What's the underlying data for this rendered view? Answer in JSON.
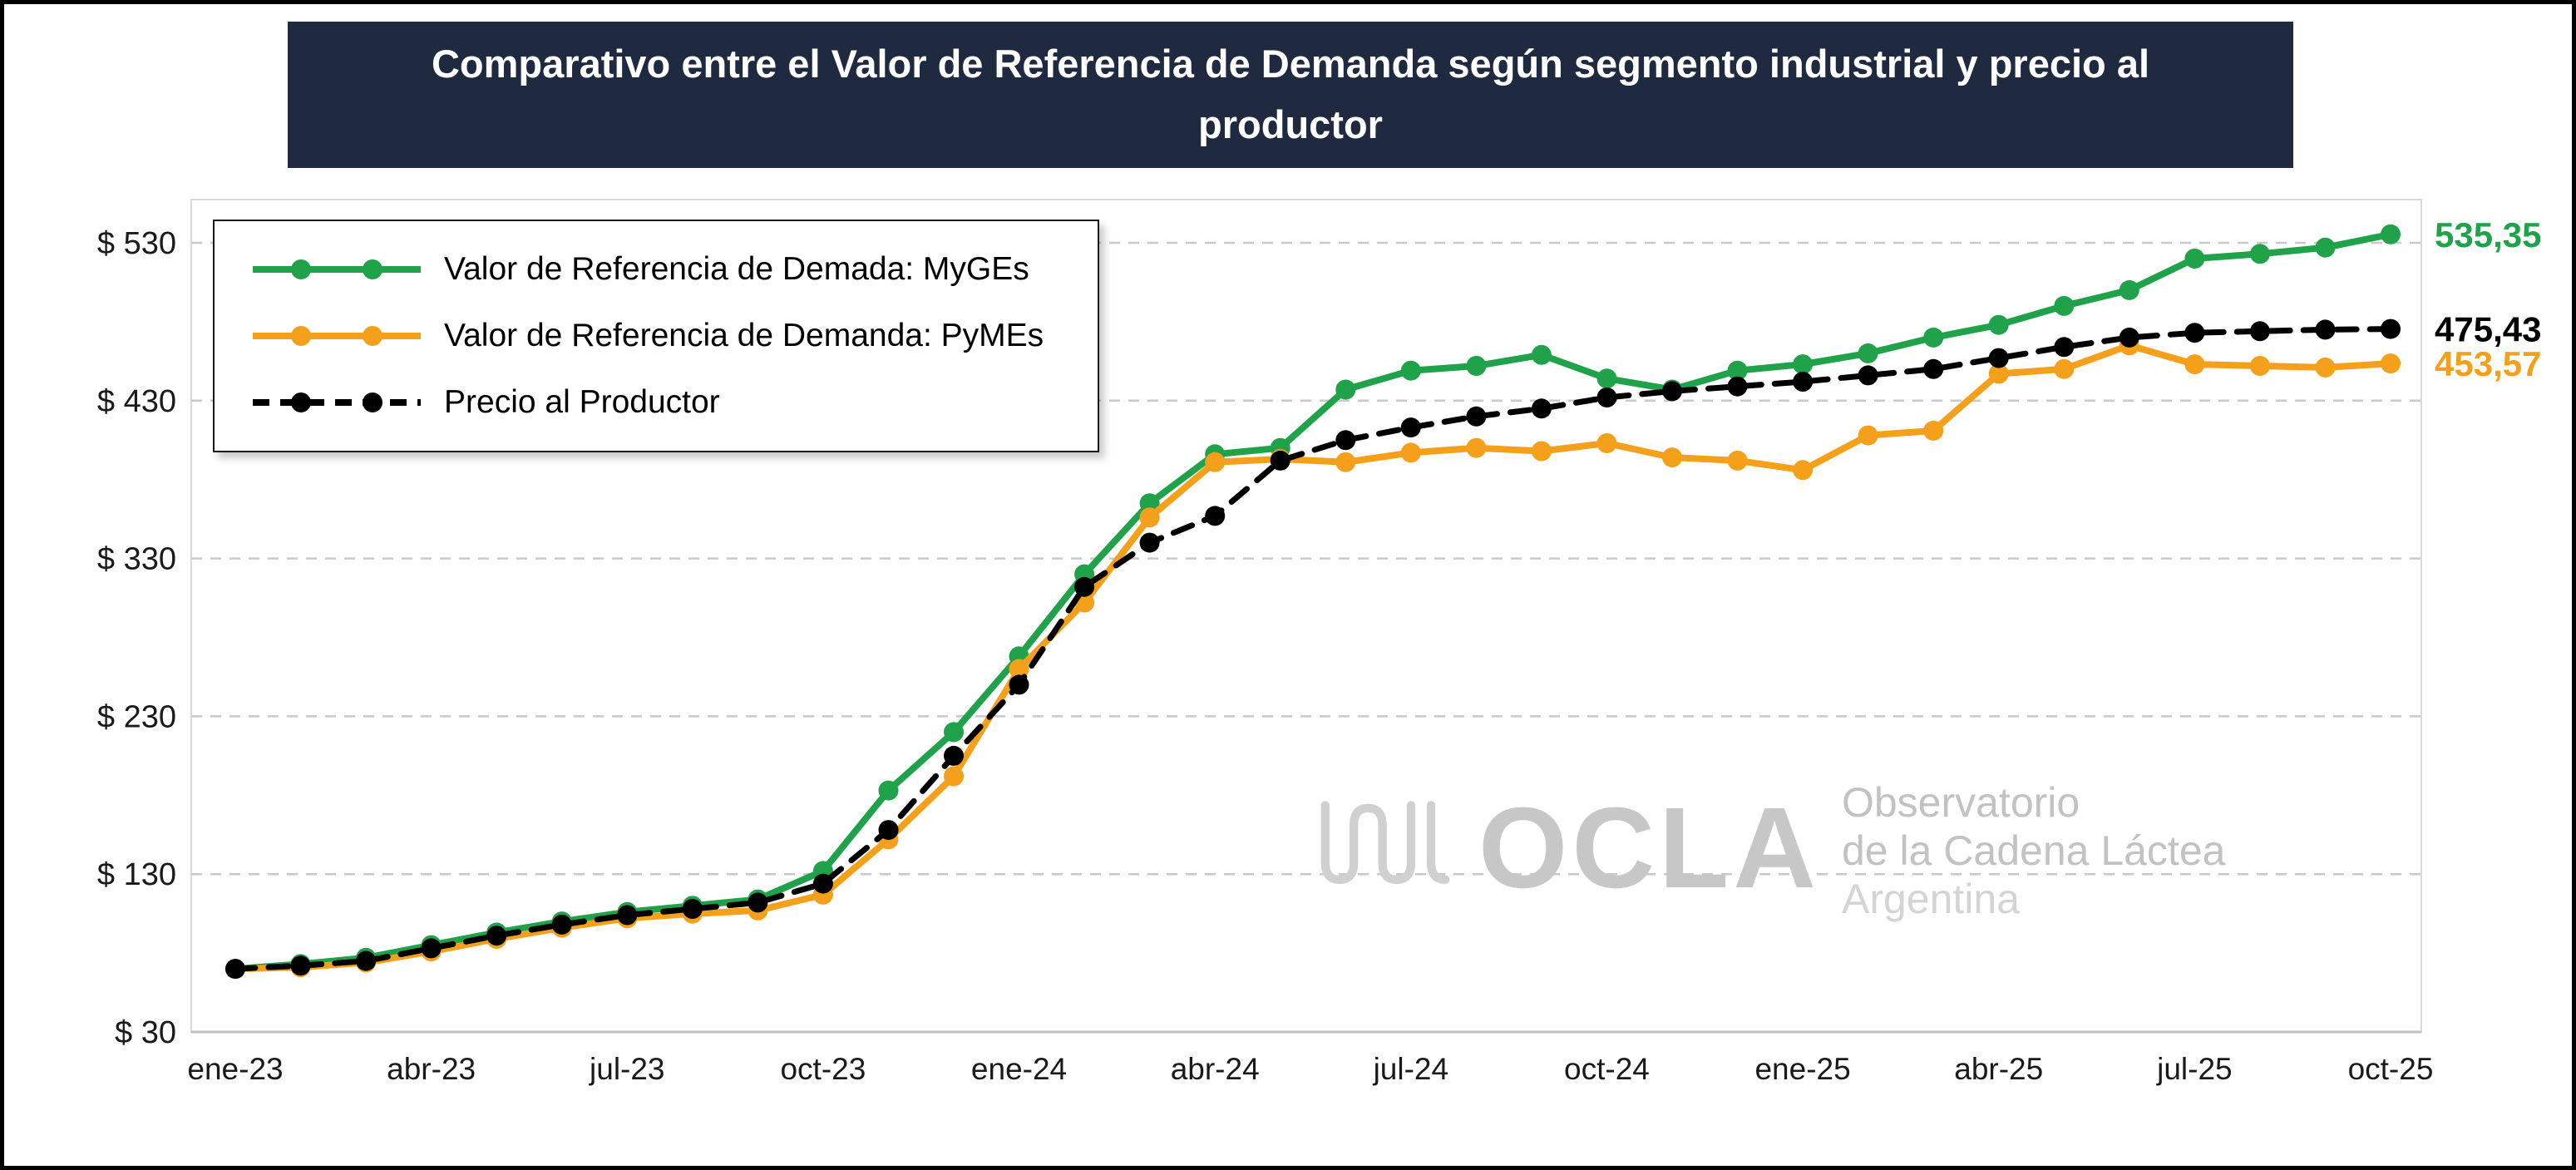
{
  "title": "Comparativo entre el Valor de Referencia de Demanda según segmento industrial y precio al productor",
  "colors": {
    "banner_bg": "#1F2A40",
    "myges_green": "#1FA24A",
    "pymes_orange": "#F5A01B",
    "productor_black": "#000000",
    "grid_gray": "#c9c9c9"
  },
  "watermark": {
    "brand": "OCLA",
    "line1": "Observatorio",
    "line2": "de la Cadena Láctea",
    "line3": "Argentina"
  },
  "chart_data": {
    "type": "line",
    "title": "Comparativo entre el Valor de Referencia de Demanda según segmento industrial y precio al productor",
    "xlabel": "",
    "ylabel": "",
    "ylim": [
      30,
      557
    ],
    "y_ticks": [
      30,
      130,
      230,
      330,
      430,
      530
    ],
    "y_tick_labels": [
      "$ 30",
      "$ 130",
      "$ 230",
      "$ 330",
      "$ 430",
      "$ 530"
    ],
    "grid": "horizontal-dashed",
    "legend_position": "top-left",
    "categories": [
      "ene-23",
      "feb-23",
      "mar-23",
      "abr-23",
      "may-23",
      "jun-23",
      "jul-23",
      "ago-23",
      "sep-23",
      "oct-23",
      "nov-23",
      "dic-23",
      "ene-24",
      "feb-24",
      "mar-24",
      "abr-24",
      "may-24",
      "jun-24",
      "jul-24",
      "ago-24",
      "sep-24",
      "oct-24",
      "nov-24",
      "dic-24",
      "ene-25",
      "feb-25",
      "mar-25",
      "abr-25",
      "may-25",
      "jun-25",
      "jul-25",
      "ago-25",
      "sep-25",
      "oct-25"
    ],
    "x_tick_indices": [
      0,
      3,
      6,
      9,
      12,
      15,
      18,
      21,
      24,
      27,
      30,
      33
    ],
    "series": [
      {
        "name": "Valor de Referencia de Demada: MyGEs",
        "color": "#1FA24A",
        "style": "solid",
        "end_label": "535,35",
        "values": [
          70,
          73,
          77,
          85,
          93,
          100,
          106,
          110,
          114,
          132,
          183,
          220,
          268,
          320,
          365,
          396,
          400,
          437,
          449,
          452,
          459,
          444,
          437,
          449,
          453,
          460,
          470,
          478,
          490,
          500,
          520,
          523,
          527,
          535.35
        ]
      },
      {
        "name": "Valor de Referencia de Demanda: PyMEs",
        "color": "#F5A01B",
        "style": "solid",
        "end_label": "453,57",
        "values": [
          70,
          71,
          74,
          81,
          89,
          96,
          102,
          105,
          107,
          117,
          152,
          192,
          260,
          302,
          356,
          391,
          393,
          391,
          397,
          400,
          398,
          403,
          394,
          392,
          386,
          408,
          411,
          447,
          450,
          465,
          453,
          452,
          451,
          453.57
        ]
      },
      {
        "name": "Precio al Productor",
        "color": "#000000",
        "style": "dashed",
        "end_label": "475,43",
        "values": [
          70,
          72,
          75,
          83,
          91,
          98,
          104,
          108,
          112,
          124,
          158,
          205,
          250,
          312,
          340,
          357,
          392,
          405,
          413,
          420,
          425,
          432,
          436,
          439,
          442,
          446,
          450,
          457,
          464,
          470,
          473,
          474,
          475,
          475.43
        ]
      }
    ]
  }
}
